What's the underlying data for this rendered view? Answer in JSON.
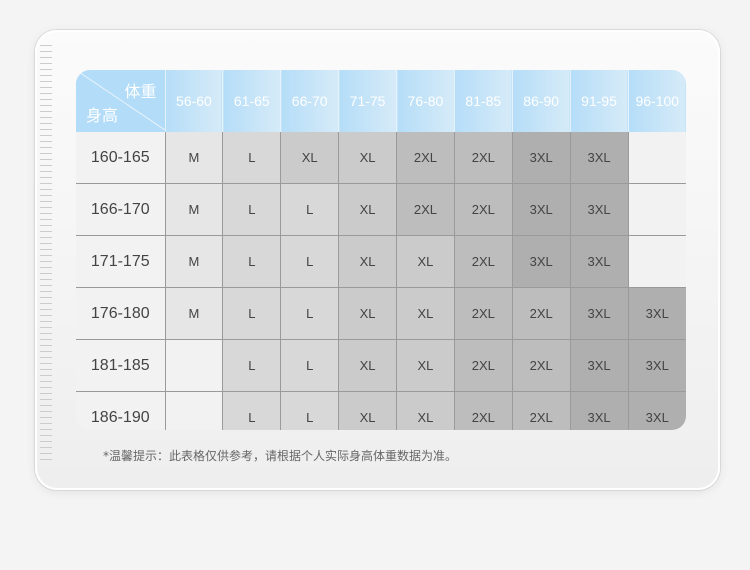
{
  "header": {
    "weight_label": "体重",
    "height_label": "身高",
    "weights": [
      "56-60",
      "61-65",
      "66-70",
      "71-75",
      "76-80",
      "81-85",
      "86-90",
      "91-95",
      "96-100"
    ]
  },
  "rows": [
    {
      "height": "160-165",
      "sizes": [
        "M",
        "L",
        "XL",
        "XL",
        "2XL",
        "2XL",
        "3XL",
        "3XL",
        ""
      ]
    },
    {
      "height": "166-170",
      "sizes": [
        "M",
        "L",
        "L",
        "XL",
        "2XL",
        "2XL",
        "3XL",
        "3XL",
        ""
      ]
    },
    {
      "height": "171-175",
      "sizes": [
        "M",
        "L",
        "L",
        "XL",
        "XL",
        "2XL",
        "3XL",
        "3XL",
        ""
      ]
    },
    {
      "height": "176-180",
      "sizes": [
        "M",
        "L",
        "L",
        "XL",
        "XL",
        "2XL",
        "2XL",
        "3XL",
        "3XL"
      ]
    },
    {
      "height": "181-185",
      "sizes": [
        "",
        "L",
        "L",
        "XL",
        "XL",
        "2XL",
        "2XL",
        "3XL",
        "3XL"
      ]
    },
    {
      "height": "186-190",
      "sizes": [
        "",
        "L",
        "L",
        "XL",
        "XL",
        "2XL",
        "2XL",
        "3XL",
        "3XL"
      ]
    }
  ],
  "size_colors": {
    "M": "#e6e6e6",
    "L": "#d8d8d8",
    "XL": "#cbcbcb",
    "2XL": "#bdbdbd",
    "3XL": "#afafaf",
    "": "#f2f2f2"
  },
  "note": "*温馨提示：此表格仅供参考，请根据个人实际身高体重数据为准。"
}
